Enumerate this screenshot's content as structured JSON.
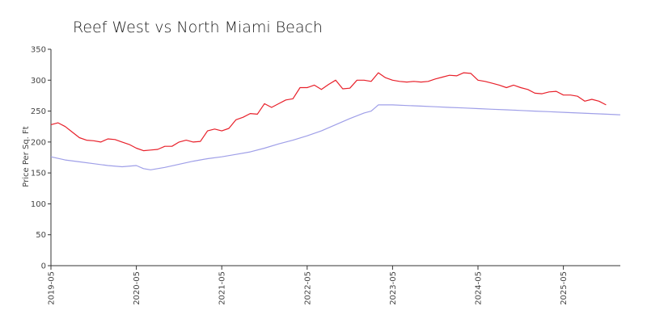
{
  "chart_data": {
    "type": "line",
    "title": "Reef West vs North Miami Beach",
    "xlabel": "",
    "ylabel": "Price Per Sq. Ft",
    "ylim": [
      0,
      350
    ],
    "yticks": [
      0,
      50,
      100,
      150,
      200,
      250,
      300,
      350
    ],
    "xlim": [
      "2019-05",
      "2026-01"
    ],
    "xticks": [
      "2019-05",
      "2020-05",
      "2021-05",
      "2022-05",
      "2023-05",
      "2024-05",
      "2025-05"
    ],
    "grid": false,
    "legend": "none",
    "series": [
      {
        "color": "#e8202a",
        "points": [
          [
            "2019-05",
            228
          ],
          [
            "2019-06",
            231
          ],
          [
            "2019-07",
            225
          ],
          [
            "2019-08",
            216
          ],
          [
            "2019-09",
            207
          ],
          [
            "2019-10",
            203
          ],
          [
            "2019-11",
            202
          ],
          [
            "2019-12",
            200
          ],
          [
            "2020-01",
            205
          ],
          [
            "2020-02",
            204
          ],
          [
            "2020-03",
            200
          ],
          [
            "2020-04",
            196
          ],
          [
            "2020-05",
            190
          ],
          [
            "2020-06",
            186
          ],
          [
            "2020-07",
            187
          ],
          [
            "2020-08",
            188
          ],
          [
            "2020-09",
            193
          ],
          [
            "2020-10",
            193
          ],
          [
            "2020-11",
            200
          ],
          [
            "2020-12",
            203
          ],
          [
            "2021-01",
            200
          ],
          [
            "2021-02",
            201
          ],
          [
            "2021-03",
            218
          ],
          [
            "2021-04",
            221
          ],
          [
            "2021-05",
            218
          ],
          [
            "2021-06",
            222
          ],
          [
            "2021-07",
            236
          ],
          [
            "2021-08",
            240
          ],
          [
            "2021-09",
            246
          ],
          [
            "2021-10",
            245
          ],
          [
            "2021-11",
            262
          ],
          [
            "2021-12",
            256
          ],
          [
            "2022-01",
            262
          ],
          [
            "2022-02",
            268
          ],
          [
            "2022-03",
            270
          ],
          [
            "2022-04",
            288
          ],
          [
            "2022-05",
            288
          ],
          [
            "2022-06",
            292
          ],
          [
            "2022-07",
            285
          ],
          [
            "2022-08",
            293
          ],
          [
            "2022-09",
            300
          ],
          [
            "2022-10",
            286
          ],
          [
            "2022-11",
            287
          ],
          [
            "2022-12",
            300
          ],
          [
            "2023-01",
            300
          ],
          [
            "2023-02",
            298
          ],
          [
            "2023-03",
            312
          ],
          [
            "2023-04",
            304
          ],
          [
            "2023-05",
            300
          ],
          [
            "2023-06",
            298
          ],
          [
            "2023-07",
            297
          ],
          [
            "2023-08",
            298
          ],
          [
            "2023-09",
            297
          ],
          [
            "2023-10",
            298
          ],
          [
            "2023-11",
            302
          ],
          [
            "2023-12",
            305
          ],
          [
            "2024-01",
            308
          ],
          [
            "2024-02",
            307
          ],
          [
            "2024-03",
            312
          ],
          [
            "2024-04",
            311
          ],
          [
            "2024-05",
            300
          ],
          [
            "2024-06",
            298
          ],
          [
            "2024-07",
            295
          ],
          [
            "2024-08",
            292
          ],
          [
            "2024-09",
            288
          ],
          [
            "2024-10",
            292
          ],
          [
            "2024-11",
            288
          ],
          [
            "2024-12",
            285
          ],
          [
            "2025-01",
            279
          ],
          [
            "2025-02",
            278
          ],
          [
            "2025-03",
            281
          ],
          [
            "2025-04",
            282
          ],
          [
            "2025-05",
            276
          ],
          [
            "2025-06",
            276
          ],
          [
            "2025-07",
            274
          ],
          [
            "2025-08",
            266
          ],
          [
            "2025-09",
            269
          ],
          [
            "2025-10",
            266
          ],
          [
            "2025-11",
            260
          ]
        ]
      },
      {
        "color": "#9f9fe8",
        "points": [
          [
            "2019-05",
            176
          ],
          [
            "2019-07",
            171
          ],
          [
            "2019-09",
            168
          ],
          [
            "2019-11",
            165
          ],
          [
            "2020-01",
            162
          ],
          [
            "2020-03",
            160
          ],
          [
            "2020-05",
            162
          ],
          [
            "2020-06",
            157
          ],
          [
            "2020-07",
            155
          ],
          [
            "2020-09",
            159
          ],
          [
            "2020-11",
            164
          ],
          [
            "2021-01",
            169
          ],
          [
            "2021-03",
            173
          ],
          [
            "2021-05",
            176
          ],
          [
            "2021-07",
            180
          ],
          [
            "2021-09",
            184
          ],
          [
            "2021-11",
            190
          ],
          [
            "2022-01",
            197
          ],
          [
            "2022-03",
            203
          ],
          [
            "2022-05",
            210
          ],
          [
            "2022-07",
            218
          ],
          [
            "2022-09",
            228
          ],
          [
            "2022-11",
            238
          ],
          [
            "2023-01",
            247
          ],
          [
            "2023-02",
            250
          ],
          [
            "2023-03",
            260
          ],
          [
            "2023-05",
            260
          ],
          [
            "2023-07",
            259
          ],
          [
            "2023-09",
            258
          ],
          [
            "2023-11",
            257
          ],
          [
            "2024-01",
            256
          ],
          [
            "2024-03",
            255
          ],
          [
            "2024-05",
            254
          ],
          [
            "2024-07",
            253
          ],
          [
            "2024-09",
            252
          ],
          [
            "2024-11",
            251
          ],
          [
            "2025-01",
            250
          ],
          [
            "2025-03",
            249
          ],
          [
            "2025-05",
            248
          ],
          [
            "2025-07",
            247
          ],
          [
            "2025-09",
            246
          ],
          [
            "2025-11",
            245
          ],
          [
            "2026-01",
            244
          ]
        ]
      }
    ]
  }
}
